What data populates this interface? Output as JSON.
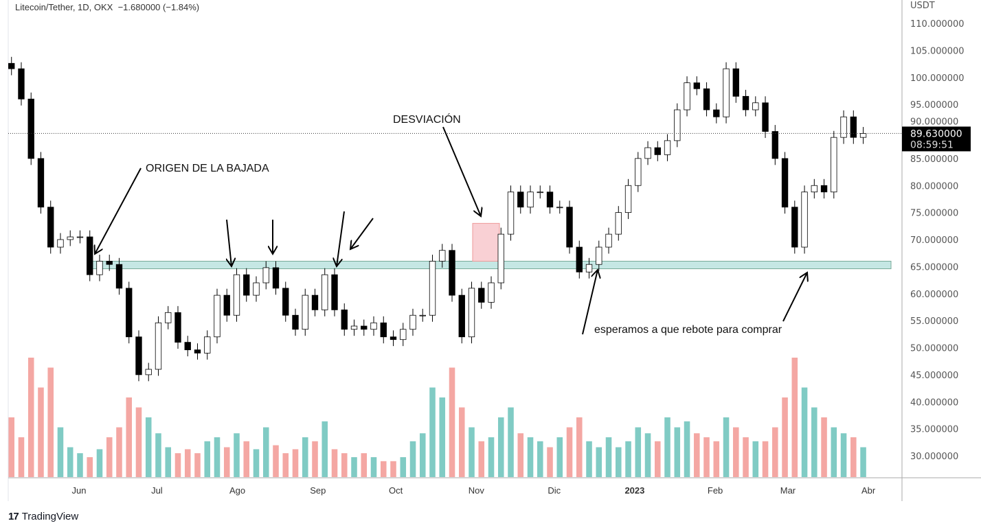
{
  "header": {
    "symbol": "Litecoin/Tether, 1D, OKX",
    "change": "−1.680000 (−1.84%)"
  },
  "logo": {
    "text": "TradingView"
  },
  "price_label": {
    "price": "89.630000",
    "countdown": "08:59:51"
  },
  "annotations": {
    "origin": "ORIGEN DE LA BAJADA",
    "deviation": "DESVIACIÓN",
    "wait": "esperamos a que rebote para comprar"
  },
  "colors": {
    "zone": "#b2dfdb",
    "deviation_box": "#f8c8cc",
    "vol_up": "#80cbc4",
    "vol_down": "#f4a7a3",
    "candle_down": "#000000",
    "candle_up": "#ffffff"
  },
  "chart_data": {
    "type": "candlestick",
    "title": "Litecoin/Tether, 1D, OKX",
    "ylabel": "USDT",
    "ylim": [
      25,
      112
    ],
    "date_range": [
      "2022-05-06",
      "2023-03-30"
    ],
    "y_ticks": [
      "110.000000",
      "105.000000",
      "100.000000",
      "95.000000",
      "90.000000",
      "85.000000",
      "80.000000",
      "75.000000",
      "70.000000",
      "65.000000",
      "60.000000",
      "55.000000",
      "50.000000",
      "45.000000",
      "40.000000",
      "35.000000",
      "30.000000"
    ],
    "y_tick_values": [
      110,
      105,
      100,
      95,
      90,
      85,
      80,
      75,
      70,
      65,
      60,
      55,
      50,
      45,
      40,
      35,
      30
    ],
    "x_ticks": [
      {
        "label": "Jun",
        "date": "2022-06-01"
      },
      {
        "label": "Jul",
        "date": "2022-07-01"
      },
      {
        "label": "Ago",
        "date": "2022-08-01"
      },
      {
        "label": "Sep",
        "date": "2022-09-01"
      },
      {
        "label": "Oct",
        "date": "2022-10-01"
      },
      {
        "label": "Nov",
        "date": "2022-11-01"
      },
      {
        "label": "Dic",
        "date": "2022-12-01"
      },
      {
        "label": "2023",
        "date": "2023-01-01"
      },
      {
        "label": "Feb",
        "date": "2023-02-01"
      },
      {
        "label": "Mar",
        "date": "2023-03-01"
      },
      {
        "label": "Abr",
        "date": "2023-04-01"
      }
    ],
    "closes": [
      101.6,
      96,
      85,
      76,
      68.6,
      70,
      70.5,
      70.5,
      63.5,
      66,
      65.4,
      61,
      52,
      45,
      46,
      54.6,
      56.5,
      51,
      49.6,
      49,
      52,
      59.7,
      56,
      63.5,
      59.7,
      62,
      64.8,
      61,
      56,
      53.4,
      59.7,
      57,
      63.5,
      57,
      53.4,
      54,
      53.4,
      54.6,
      52,
      51.5,
      53.4,
      56,
      56,
      66,
      68,
      59.7,
      52,
      61,
      58.4,
      62,
      71,
      78.8,
      76,
      78.8,
      78.8,
      76,
      76,
      68.6,
      64,
      65.4,
      68.6,
      71,
      75,
      80,
      85,
      87,
      85.7,
      88.3,
      94,
      99,
      97.9,
      94,
      92.7,
      101.6,
      96.5,
      94,
      95.3,
      90,
      85,
      76,
      68.6,
      78.8,
      80,
      78.8,
      88.9,
      92.7,
      88.9,
      89.63
    ],
    "volume": [
      30,
      20,
      60,
      45,
      55,
      25,
      15,
      12,
      10,
      14,
      20,
      25,
      40,
      35,
      30,
      22,
      15,
      12,
      14,
      12,
      18,
      20,
      15,
      22,
      18,
      14,
      25,
      16,
      12,
      14,
      20,
      18,
      28,
      14,
      12,
      10,
      12,
      10,
      8,
      8,
      10,
      18,
      22,
      45,
      40,
      55,
      35,
      25,
      18,
      20,
      30,
      35,
      22,
      20,
      18,
      15,
      20,
      25,
      30,
      18,
      15,
      20,
      15,
      18,
      25,
      22,
      18,
      30,
      25,
      28,
      22,
      20,
      18,
      30,
      25,
      20,
      18,
      18,
      25,
      40,
      60,
      45,
      35,
      30,
      25,
      22,
      20,
      15
    ],
    "current_price": 89.63,
    "support_zone": [
      64.6,
      66.0
    ],
    "deviation_box": [
      66.0,
      73.0
    ]
  }
}
